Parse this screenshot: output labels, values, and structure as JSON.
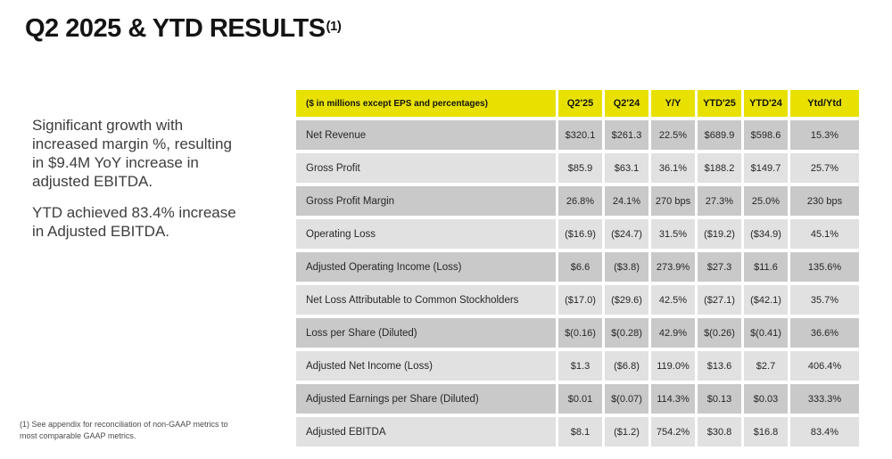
{
  "colors": {
    "accent_yellow": "#e8e100",
    "row_dark": "#c9c9c9",
    "row_light": "#e1e1e1"
  },
  "title": {
    "text": "Q2 2025 & YTD RESULTS",
    "superscript": "(1)"
  },
  "key_messages": {
    "paragraph1": "Significant growth with increased margin %, resulting in $9.4M YoY increase in adjusted EBITDA.",
    "paragraph2": "YTD achieved 83.4% increase in Adjusted EBITDA."
  },
  "footnote": "(1) See appendix for reconciliation of non-GAAP metrics to most comparable GAAP metrics.",
  "table": {
    "header_label": "($ in millions except EPS and percentages)",
    "columns": [
      "Q2'25",
      "Q2'24",
      "Y/Y",
      "YTD'25",
      "YTD'24",
      "Ytd/Ytd"
    ],
    "rows": [
      {
        "label": "Net Revenue",
        "values": [
          "$320.1",
          "$261.3",
          "22.5%",
          "$689.9",
          "$598.6",
          "15.3%"
        ]
      },
      {
        "label": "Gross Profit",
        "values": [
          "$85.9",
          "$63.1",
          "36.1%",
          "$188.2",
          "$149.7",
          "25.7%"
        ]
      },
      {
        "label": "Gross Profit Margin",
        "values": [
          "26.8%",
          "24.1%",
          "270 bps",
          "27.3%",
          "25.0%",
          "230 bps"
        ]
      },
      {
        "label": "Operating Loss",
        "values": [
          "($16.9)",
          "($24.7)",
          "31.5%",
          "($19.2)",
          "($34.9)",
          "45.1%"
        ]
      },
      {
        "label": "Adjusted Operating Income (Loss)",
        "values": [
          "$6.6",
          "($3.8)",
          "273.9%",
          "$27.3",
          "$11.6",
          "135.6%"
        ]
      },
      {
        "label": "Net Loss Attributable to Common Stockholders",
        "values": [
          "($17.0)",
          "($29.6)",
          "42.5%",
          "($27.1)",
          "($42.1)",
          "35.7%"
        ]
      },
      {
        "label": "Loss per Share (Diluted)",
        "values": [
          "$(0.16)",
          "$(0.28)",
          "42.9%",
          "$(0.26)",
          "$(0.41)",
          "36.6%"
        ]
      },
      {
        "label": "Adjusted Net Income (Loss)",
        "values": [
          "$1.3",
          "($6.8)",
          "119.0%",
          "$13.6",
          "$2.7",
          "406.4%"
        ]
      },
      {
        "label": "Adjusted Earnings per Share (Diluted)",
        "values": [
          "$0.01",
          "$(0.07)",
          "114.3%",
          "$0.13",
          "$0.03",
          "333.3%"
        ]
      },
      {
        "label": "Adjusted EBITDA",
        "values": [
          "$8.1",
          "($1.2)",
          "754.2%",
          "$30.8",
          "$16.8",
          "83.4%"
        ]
      }
    ]
  }
}
